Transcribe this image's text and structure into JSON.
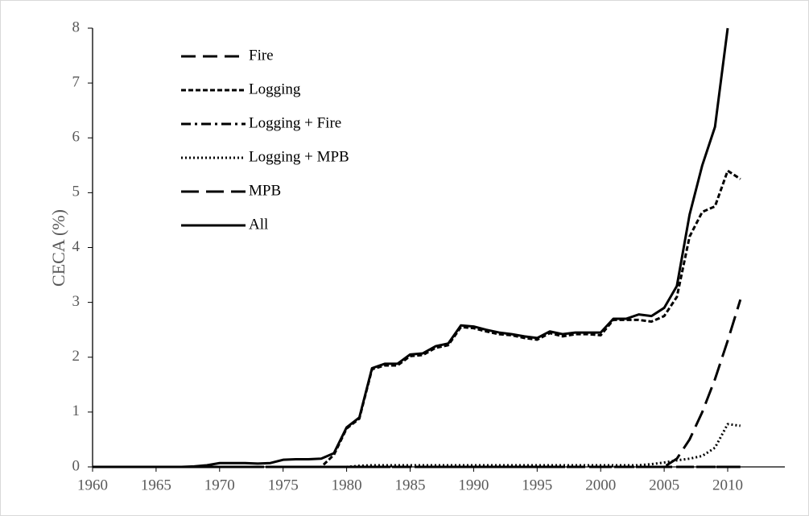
{
  "chart_data": {
    "type": "line",
    "y_label": "CECA (%)",
    "x": [
      1960,
      1961,
      1962,
      1963,
      1964,
      1965,
      1966,
      1967,
      1968,
      1969,
      1970,
      1971,
      1972,
      1973,
      1974,
      1975,
      1976,
      1977,
      1978,
      1979,
      1980,
      1981,
      1982,
      1983,
      1984,
      1985,
      1986,
      1987,
      1988,
      1989,
      1990,
      1991,
      1992,
      1993,
      1994,
      1995,
      1996,
      1997,
      1998,
      1999,
      2000,
      2001,
      2002,
      2003,
      2004,
      2005,
      2006,
      2007,
      2008,
      2009,
      2010,
      2011
    ],
    "xlim": [
      1960,
      2014.5
    ],
    "xticks": [
      1960,
      1965,
      1970,
      1975,
      1980,
      1985,
      1990,
      1995,
      2000,
      2005,
      2010
    ],
    "ylim": [
      0,
      8
    ],
    "yticks": [
      0,
      1,
      2,
      3,
      4,
      5,
      6,
      7,
      8
    ],
    "grid": false,
    "legend": "upper-left",
    "series": [
      {
        "name": "Fire",
        "color": "#000000",
        "dash": "18,9",
        "width": 3,
        "values": [
          0,
          0,
          0,
          0,
          0,
          0,
          0,
          0,
          0,
          0,
          0,
          0,
          0,
          0,
          0,
          0,
          0,
          0,
          0,
          0,
          0,
          0,
          0,
          0,
          0,
          0,
          0,
          0,
          0,
          0,
          0,
          0,
          0,
          0,
          0,
          0,
          0,
          0,
          0,
          0,
          0,
          0,
          0,
          0,
          0,
          0,
          0,
          0,
          0,
          0,
          0,
          0
        ]
      },
      {
        "name": "Logging",
        "color": "#000000",
        "dash": "6,3",
        "width": 3,
        "values": [
          0,
          0,
          0,
          0,
          0,
          0,
          0,
          0,
          0,
          0,
          0,
          0,
          0,
          0,
          0,
          0,
          0,
          0,
          0,
          0.22,
          0.7,
          0.88,
          1.78,
          1.85,
          1.85,
          2.02,
          2.04,
          2.17,
          2.22,
          2.55,
          2.53,
          2.47,
          2.42,
          2.4,
          2.35,
          2.32,
          2.44,
          2.38,
          2.42,
          2.42,
          2.4,
          2.68,
          2.68,
          2.68,
          2.65,
          2.75,
          3.1,
          4.2,
          4.65,
          4.75,
          5.4,
          5.25
        ]
      },
      {
        "name": "Logging + Fire",
        "color": "#000000",
        "dash": "12,5,3,5",
        "width": 3,
        "values": [
          0,
          0,
          0,
          0,
          0,
          0,
          0,
          0,
          0,
          0,
          0,
          0,
          0,
          0,
          0,
          0,
          0,
          0,
          0,
          0,
          0,
          0,
          0,
          0,
          0,
          0,
          0,
          0,
          0,
          0,
          0,
          0,
          0,
          0,
          0,
          0,
          0,
          0,
          0,
          0,
          0,
          0,
          0,
          0,
          0,
          0,
          0,
          0,
          0,
          0,
          0,
          0
        ]
      },
      {
        "name": "Logging + MPB",
        "color": "#000000",
        "dash": "2,3",
        "width": 3,
        "values": [
          0,
          0,
          0,
          0,
          0,
          0,
          0,
          0,
          0,
          0,
          0,
          0,
          0,
          0,
          0,
          0,
          0,
          0,
          0,
          0,
          0,
          0.02,
          0.03,
          0.03,
          0.03,
          0.03,
          0.03,
          0.03,
          0.03,
          0.03,
          0.03,
          0.03,
          0.03,
          0.03,
          0.03,
          0.03,
          0.03,
          0.03,
          0.03,
          0.03,
          0.03,
          0.03,
          0.03,
          0.03,
          0.05,
          0.08,
          0.12,
          0.15,
          0.2,
          0.35,
          0.78,
          0.75
        ]
      },
      {
        "name": "MPB",
        "color": "#000000",
        "dash": "22,9",
        "width": 3,
        "values": [
          0,
          0,
          0,
          0,
          0,
          0,
          0,
          0,
          0,
          0,
          0,
          0,
          0,
          0,
          0,
          0,
          0,
          0,
          0,
          0,
          0,
          0,
          0,
          0,
          0,
          0,
          0,
          0,
          0,
          0,
          0,
          0,
          0,
          0,
          0,
          0,
          0,
          0,
          0,
          0,
          0,
          0,
          0,
          0,
          0,
          0,
          0.15,
          0.5,
          1.0,
          1.6,
          2.3,
          3.05
        ]
      },
      {
        "name": "All",
        "color": "#000000",
        "dash": "",
        "width": 3,
        "values": [
          0,
          0,
          0,
          0,
          0,
          0,
          0,
          0,
          0.01,
          0.03,
          0.07,
          0.07,
          0.07,
          0.06,
          0.07,
          0.13,
          0.14,
          0.14,
          0.15,
          0.25,
          0.72,
          0.9,
          1.8,
          1.88,
          1.88,
          2.05,
          2.07,
          2.2,
          2.25,
          2.58,
          2.56,
          2.5,
          2.45,
          2.42,
          2.38,
          2.35,
          2.47,
          2.42,
          2.45,
          2.45,
          2.45,
          2.7,
          2.7,
          2.78,
          2.75,
          2.9,
          3.3,
          4.6,
          5.5,
          6.2,
          8.0,
          null
        ]
      }
    ]
  }
}
